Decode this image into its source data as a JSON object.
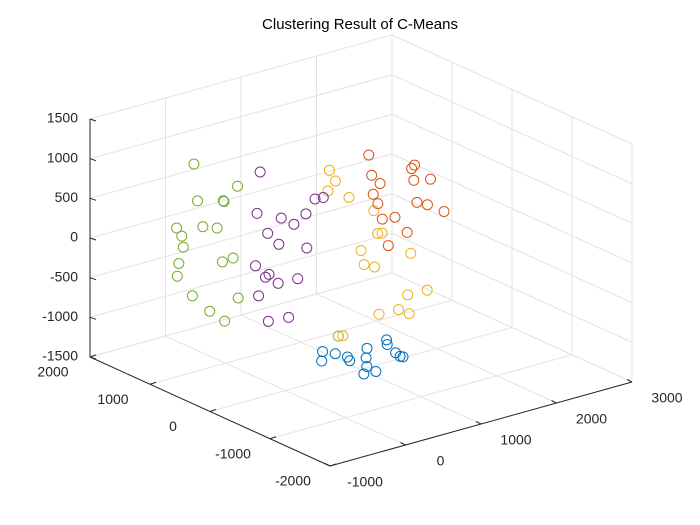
{
  "chart_data": {
    "type": "scatter3d",
    "title": "Clustering Result of C-Means",
    "xlim": [
      -1000,
      3000
    ],
    "xticks": [
      -1000,
      0,
      1000,
      2000,
      3000
    ],
    "ylim": [
      -2000,
      2000
    ],
    "yticks": [
      -2000,
      -1000,
      0,
      1000,
      2000
    ],
    "zlim": [
      -1500,
      1500
    ],
    "zticks": [
      -1500,
      -1000,
      -500,
      0,
      500,
      1000,
      1500
    ],
    "grid": true,
    "series": [
      {
        "color": "#0072BD",
        "x": [
          500,
          800,
          1000,
          700,
          1200,
          600,
          900,
          1100,
          400,
          1000,
          800,
          650,
          950,
          1300,
          750,
          850
        ],
        "y": [
          -200,
          -500,
          -100,
          0,
          -400,
          -600,
          100,
          -300,
          -100,
          -700,
          -300,
          200,
          -500,
          -200,
          -400,
          0
        ],
        "z": [
          -1100,
          -1300,
          -1200,
          -1000,
          -1250,
          -1150,
          -1350,
          -1050,
          -1200,
          -1100,
          -1400,
          -1250,
          -1000,
          -1300,
          -1150,
          -1350
        ]
      },
      {
        "color": "#EDB120",
        "x": [
          1100,
          1300,
          1000,
          1400,
          1200,
          900,
          1500,
          1100,
          1300,
          800,
          900,
          1000,
          1200,
          600,
          700,
          1400,
          1000,
          1250
        ],
        "y": [
          -100,
          -400,
          0,
          -300,
          200,
          300,
          -200,
          -500,
          100,
          300,
          400,
          200,
          -100,
          -200,
          0,
          -600,
          -300,
          100
        ],
        "z": [
          -200,
          -500,
          0,
          -800,
          -300,
          800,
          -100,
          -600,
          100,
          700,
          900,
          600,
          200,
          -900,
          -1000,
          -400,
          -700,
          400
        ]
      },
      {
        "color": "#77AC30",
        "x": [
          -400,
          -100,
          -300,
          0,
          -500,
          -200,
          -350,
          100,
          -250,
          -150,
          -450,
          -50,
          -300,
          -200,
          50,
          -400,
          -100,
          -250
        ],
        "y": [
          1200,
          900,
          1400,
          800,
          1100,
          1300,
          700,
          1000,
          1500,
          600,
          900,
          1200,
          1000,
          800,
          1100,
          1300,
          1400,
          700
        ],
        "z": [
          0,
          600,
          -300,
          800,
          200,
          -700,
          400,
          -200,
          100,
          -500,
          700,
          -900,
          300,
          -100,
          500,
          -400,
          900,
          -800
        ]
      },
      {
        "color": "#7E2F8E",
        "x": [
          100,
          400,
          300,
          600,
          200,
          500,
          0,
          350,
          450,
          150,
          250,
          550,
          300,
          400,
          100,
          500,
          200,
          350
        ],
        "y": [
          600,
          300,
          800,
          400,
          200,
          700,
          500,
          100,
          900,
          300,
          600,
          200,
          500,
          800,
          400,
          0,
          700,
          300
        ],
        "z": [
          500,
          -300,
          900,
          0,
          -700,
          300,
          -100,
          600,
          -500,
          200,
          -900,
          700,
          -400,
          100,
          -200,
          800,
          -600,
          400
        ]
      },
      {
        "color": "#D95319",
        "x": [
          1400,
          1700,
          1900,
          1500,
          1800,
          1600,
          2000,
          1300,
          1700,
          1550,
          1850,
          1450,
          1750,
          1650,
          2100,
          1600
        ],
        "y": [
          300,
          0,
          200,
          500,
          -100,
          400,
          100,
          200,
          600,
          -200,
          300,
          0,
          100,
          500,
          0,
          300
        ],
        "z": [
          500,
          700,
          300,
          900,
          400,
          100,
          600,
          800,
          200,
          1000,
          -100,
          300,
          800,
          500,
          200,
          -200
        ]
      }
    ]
  }
}
